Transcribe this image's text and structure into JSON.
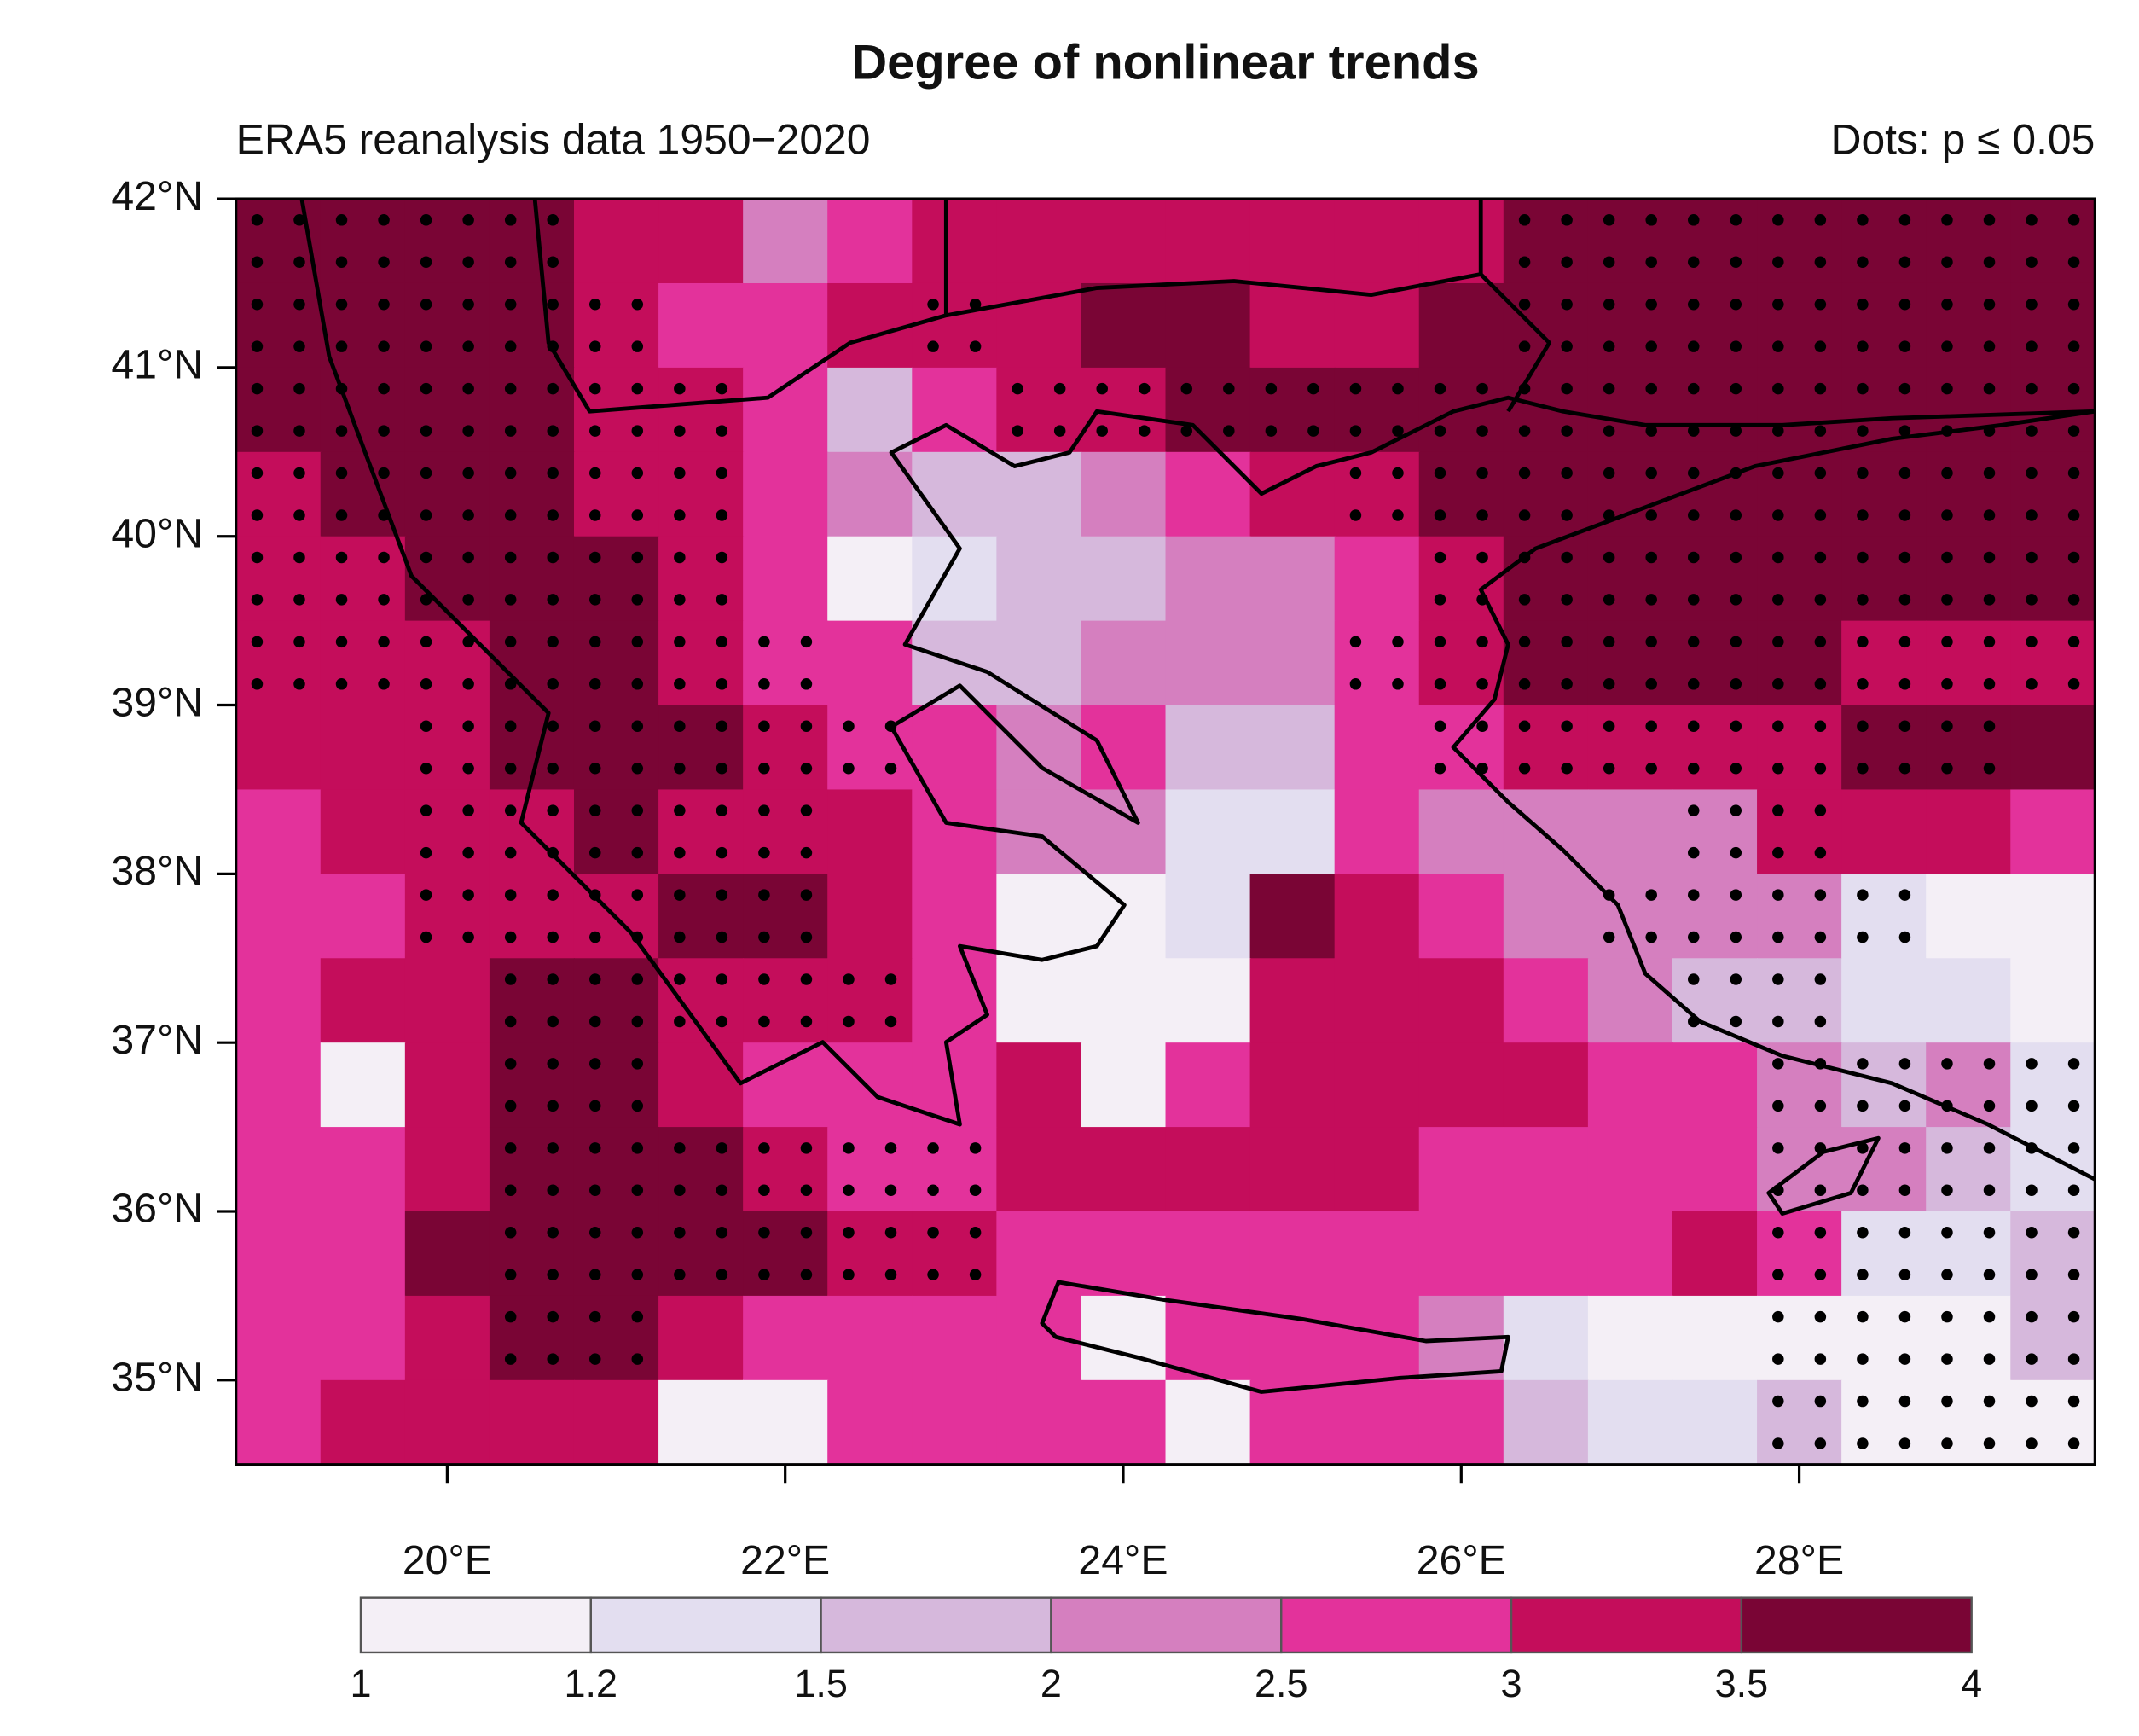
{
  "chart_data": {
    "type": "raster-map",
    "title": "Degree of nonlinear trends",
    "subtitle": "ERA5 reanalysis data 1950−2020",
    "annotation": "Dots: p ≤ 0.05",
    "xlim": [
      18.75,
      29.75
    ],
    "ylim": [
      34.5,
      42
    ],
    "xticks": [
      {
        "value": 20,
        "label": "20°E"
      },
      {
        "value": 22,
        "label": "22°E"
      },
      {
        "value": 24,
        "label": "24°E"
      },
      {
        "value": 26,
        "label": "26°E"
      },
      {
        "value": 28,
        "label": "28°E"
      }
    ],
    "yticks": [
      {
        "value": 35,
        "label": "35°N"
      },
      {
        "value": 36,
        "label": "36°N"
      },
      {
        "value": 37,
        "label": "37°N"
      },
      {
        "value": 38,
        "label": "38°N"
      },
      {
        "value": 39,
        "label": "39°N"
      },
      {
        "value": 40,
        "label": "40°N"
      },
      {
        "value": 41,
        "label": "41°N"
      },
      {
        "value": 42,
        "label": "42°N"
      }
    ],
    "x": [
      19.0,
      19.5,
      20.0,
      20.5,
      21.0,
      21.5,
      22.0,
      22.5,
      23.0,
      23.5,
      24.0,
      24.5,
      25.0,
      25.5,
      26.0,
      26.5,
      27.0,
      27.5,
      28.0,
      28.5,
      29.0,
      29.5
    ],
    "y": [
      41.75,
      41.25,
      40.75,
      40.25,
      39.75,
      39.25,
      38.75,
      38.25,
      37.75,
      37.25,
      36.75,
      36.25,
      35.75,
      35.25,
      34.75
    ],
    "values": [
      [
        3.75,
        3.75,
        3.75,
        3.75,
        3.25,
        3.25,
        2.25,
        2.75,
        3.25,
        3.25,
        3.25,
        3.25,
        3.25,
        3.25,
        3.25,
        3.75,
        3.75,
        3.75,
        3.75,
        3.75,
        3.75,
        3.75
      ],
      [
        3.75,
        3.75,
        3.75,
        3.75,
        3.25,
        2.75,
        2.75,
        3.25,
        3.25,
        3.25,
        3.75,
        3.75,
        3.25,
        3.25,
        3.75,
        3.75,
        3.75,
        3.75,
        3.75,
        3.75,
        3.75,
        3.75
      ],
      [
        3.75,
        3.75,
        3.75,
        3.75,
        3.25,
        3.25,
        2.75,
        1.75,
        2.75,
        3.25,
        3.25,
        3.75,
        3.75,
        3.75,
        3.75,
        3.75,
        3.75,
        3.75,
        3.75,
        3.75,
        3.75,
        3.75
      ],
      [
        3.25,
        3.75,
        3.75,
        3.75,
        3.25,
        3.25,
        2.75,
        2.25,
        1.75,
        1.75,
        2.25,
        2.75,
        3.25,
        3.25,
        3.75,
        3.75,
        3.75,
        3.75,
        3.75,
        3.75,
        3.75,
        3.75
      ],
      [
        3.25,
        3.25,
        3.75,
        3.75,
        3.75,
        3.25,
        2.75,
        1.1,
        1.35,
        1.75,
        1.75,
        2.25,
        2.25,
        2.75,
        3.25,
        3.75,
        3.75,
        3.75,
        3.75,
        3.75,
        3.75,
        3.75
      ],
      [
        3.25,
        3.25,
        3.25,
        3.75,
        3.75,
        3.25,
        2.75,
        2.75,
        1.75,
        1.75,
        2.25,
        2.25,
        2.25,
        2.75,
        3.25,
        3.75,
        3.75,
        3.75,
        3.75,
        3.25,
        3.25,
        3.25
      ],
      [
        3.25,
        3.25,
        3.25,
        3.75,
        3.75,
        3.75,
        3.25,
        2.75,
        2.75,
        2.25,
        2.75,
        1.75,
        1.75,
        2.75,
        2.75,
        3.25,
        3.25,
        3.25,
        3.25,
        3.75,
        3.75,
        3.75
      ],
      [
        2.75,
        3.25,
        3.25,
        3.25,
        3.75,
        3.25,
        3.25,
        3.25,
        2.75,
        2.25,
        2.25,
        1.35,
        1.35,
        2.75,
        2.25,
        2.25,
        2.25,
        2.25,
        3.25,
        3.25,
        3.25,
        2.75
      ],
      [
        2.75,
        2.75,
        3.25,
        3.25,
        3.25,
        3.75,
        3.75,
        3.25,
        2.75,
        1.1,
        1.1,
        1.35,
        3.75,
        3.25,
        2.75,
        2.25,
        2.25,
        2.25,
        2.25,
        1.35,
        1.1,
        1.1
      ],
      [
        2.75,
        3.25,
        3.25,
        3.75,
        3.75,
        3.25,
        3.25,
        3.25,
        2.75,
        1.1,
        1.1,
        1.1,
        3.25,
        3.25,
        3.25,
        2.75,
        2.25,
        1.75,
        1.75,
        1.35,
        1.35,
        1.1
      ],
      [
        2.75,
        1.1,
        3.25,
        3.75,
        3.75,
        3.25,
        2.75,
        2.75,
        2.75,
        3.25,
        1.1,
        2.75,
        3.25,
        3.25,
        3.25,
        3.25,
        2.75,
        2.75,
        2.25,
        1.75,
        2.25,
        1.35
      ],
      [
        2.75,
        2.75,
        3.25,
        3.75,
        3.75,
        3.75,
        3.25,
        2.75,
        2.75,
        3.25,
        3.25,
        3.25,
        3.25,
        3.25,
        2.75,
        2.75,
        2.75,
        2.75,
        2.25,
        2.25,
        1.75,
        1.35
      ],
      [
        2.75,
        2.75,
        3.75,
        3.75,
        3.75,
        3.75,
        3.75,
        3.25,
        3.25,
        2.75,
        2.75,
        2.75,
        2.75,
        2.75,
        2.75,
        2.75,
        2.75,
        3.25,
        2.75,
        1.35,
        1.35,
        1.75
      ],
      [
        2.75,
        2.75,
        3.25,
        3.75,
        3.75,
        3.25,
        2.75,
        2.75,
        2.75,
        2.75,
        1.1,
        2.75,
        2.75,
        2.75,
        2.25,
        1.35,
        1.1,
        1.1,
        1.1,
        1.1,
        1.1,
        1.75
      ],
      [
        2.75,
        3.25,
        3.25,
        3.25,
        3.25,
        1.1,
        1.1,
        2.75,
        2.75,
        2.75,
        2.75,
        1.1,
        2.75,
        2.75,
        2.75,
        1.75,
        1.35,
        1.35,
        1.75,
        1.1,
        1.1,
        1.1
      ]
    ],
    "dots": [
      [
        1,
        1,
        1,
        1,
        0,
        0,
        0,
        0,
        0,
        0,
        0,
        0,
        0,
        0,
        0,
        1,
        1,
        1,
        1,
        1,
        1,
        1
      ],
      [
        1,
        1,
        1,
        1,
        1,
        0,
        0,
        0,
        1,
        0,
        0,
        0,
        0,
        0,
        0,
        1,
        1,
        1,
        1,
        1,
        1,
        1
      ],
      [
        1,
        1,
        1,
        1,
        1,
        1,
        0,
        0,
        0,
        1,
        1,
        1,
        1,
        1,
        1,
        1,
        1,
        1,
        1,
        1,
        1,
        1
      ],
      [
        1,
        1,
        1,
        1,
        1,
        1,
        0,
        0,
        0,
        0,
        0,
        0,
        0,
        1,
        1,
        1,
        1,
        1,
        1,
        1,
        1,
        1
      ],
      [
        1,
        1,
        1,
        1,
        1,
        1,
        0,
        0,
        0,
        0,
        0,
        0,
        0,
        0,
        1,
        1,
        1,
        1,
        1,
        1,
        1,
        1
      ],
      [
        1,
        1,
        1,
        1,
        1,
        1,
        1,
        0,
        0,
        0,
        0,
        0,
        0,
        1,
        1,
        1,
        1,
        1,
        1,
        1,
        1,
        1
      ],
      [
        0,
        0,
        1,
        1,
        1,
        1,
        1,
        1,
        0,
        0,
        0,
        0,
        0,
        0,
        1,
        1,
        1,
        1,
        1,
        1,
        1,
        0
      ],
      [
        0,
        0,
        1,
        1,
        1,
        1,
        1,
        0,
        0,
        0,
        0,
        0,
        0,
        0,
        0,
        0,
        0,
        1,
        1,
        0,
        0,
        0
      ],
      [
        0,
        0,
        1,
        1,
        1,
        1,
        1,
        0,
        0,
        0,
        0,
        0,
        0,
        0,
        0,
        0,
        1,
        1,
        1,
        1,
        0,
        0
      ],
      [
        0,
        0,
        0,
        1,
        1,
        1,
        1,
        1,
        0,
        0,
        0,
        0,
        0,
        0,
        0,
        0,
        0,
        1,
        1,
        0,
        0,
        0
      ],
      [
        0,
        0,
        0,
        1,
        1,
        0,
        0,
        0,
        0,
        0,
        0,
        0,
        0,
        0,
        0,
        0,
        0,
        0,
        1,
        1,
        1,
        1
      ],
      [
        0,
        0,
        0,
        1,
        1,
        1,
        1,
        1,
        1,
        0,
        0,
        0,
        0,
        0,
        0,
        0,
        0,
        0,
        1,
        1,
        1,
        1
      ],
      [
        0,
        0,
        0,
        1,
        1,
        1,
        1,
        1,
        1,
        0,
        0,
        0,
        0,
        0,
        0,
        0,
        0,
        0,
        1,
        1,
        1,
        1
      ],
      [
        0,
        0,
        0,
        1,
        1,
        0,
        0,
        0,
        0,
        0,
        0,
        0,
        0,
        0,
        0,
        0,
        0,
        0,
        1,
        1,
        1,
        1
      ],
      [
        0,
        0,
        0,
        0,
        0,
        0,
        0,
        0,
        0,
        0,
        0,
        0,
        0,
        0,
        0,
        0,
        0,
        0,
        1,
        1,
        1,
        1
      ]
    ],
    "colorbar": {
      "breaks": [
        1,
        1.2,
        1.5,
        2,
        2.5,
        3,
        3.5,
        4
      ],
      "colors": [
        "#f4eff6",
        "#e3def0",
        "#d6b8dc",
        "#d57fbf",
        "#e3329b",
        "#c40d5b",
        "#7a0535"
      ]
    }
  }
}
